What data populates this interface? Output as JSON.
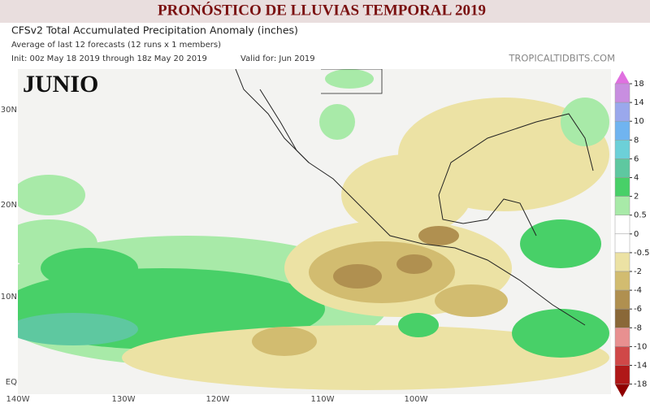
{
  "header": {
    "banner": "PRONÓSTICO DE LLUVIAS TEMPORAL 2019",
    "title": "CFSv2 Total Accumulated Precipitation Anomaly (inches)",
    "subtitle": "Average of last 12 forecasts (12 runs x 1 members)",
    "init": "Init: 00z May 18 2019 through 18z May 20 2019",
    "valid": "Valid for: Jun 2019",
    "source": "TROPICALTIDBITS.COM"
  },
  "map": {
    "label": "JUNIO",
    "lat_labels": [
      "30N",
      "20N",
      "10N",
      "EQ"
    ],
    "lon_labels": [
      "140W",
      "130W",
      "120W",
      "110W",
      "100W"
    ]
  },
  "colorbar": {
    "ticks": [
      18,
      14,
      10,
      8,
      6,
      4,
      2,
      0.5,
      0,
      -0.5,
      -2,
      -4,
      -6,
      -8,
      -10,
      -14,
      -18
    ],
    "colors": [
      "#c88ee0",
      "#9aa8ec",
      "#70b4f0",
      "#6cd0d8",
      "#5ec8a0",
      "#48d068",
      "#a8eaa8",
      "#ffffff",
      "#ffffff",
      "#ece2a4",
      "#d2bc70",
      "#b09050",
      "#8a6838",
      "#e89090",
      "#d04848",
      "#b01818"
    ]
  }
}
